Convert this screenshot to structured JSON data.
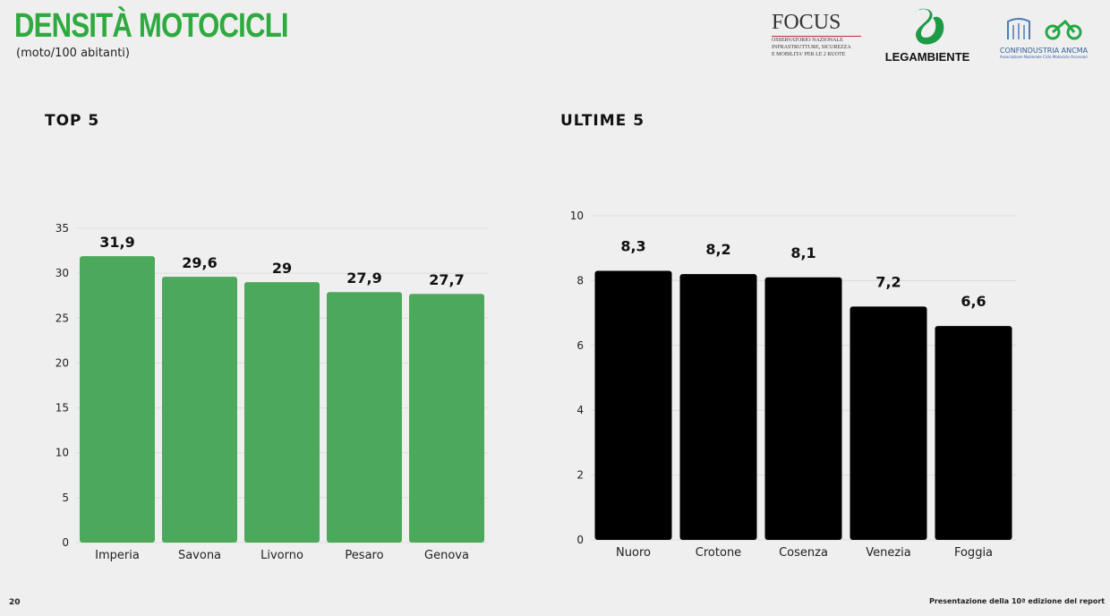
{
  "header": {
    "title": "DENSITÀ MOTOCICLI",
    "subtitle": "(moto/100 abitanti)"
  },
  "logos": {
    "focus": {
      "name": "FOCUS",
      "lines": [
        "OSSERVATORIO NAZIONALE",
        "INFRASTRUTTURE, SICUREZZA",
        "E MOBILITA' PER LE 2 RUOTE"
      ]
    },
    "legambiente": "LEGAMBIENTE",
    "confindustria": {
      "name": "CONFINDUSTRIA ANCMA",
      "sub": "Associazione Nazionale Ciclo Motociclo Accessori"
    }
  },
  "footer": {
    "page": "20",
    "text": "Presentazione della 10ª edizione del report"
  },
  "chart_data": [
    {
      "type": "bar",
      "title": "TOP 5",
      "categories": [
        "Imperia",
        "Savona",
        "Livorno",
        "Pesaro",
        "Genova"
      ],
      "values": [
        31.9,
        29.6,
        29,
        27.9,
        27.7
      ],
      "labels": [
        "31,9",
        "29,6",
        "29",
        "27,9",
        "27,7"
      ],
      "ylim": [
        0,
        35
      ],
      "yticks": [
        0,
        5,
        10,
        15,
        20,
        25,
        30,
        35
      ],
      "grid": true,
      "color": "#4ca85a"
    },
    {
      "type": "bar",
      "title": "ULTIME 5",
      "categories": [
        "Nuoro",
        "Crotone",
        "Cosenza",
        "Venezia",
        "Foggia"
      ],
      "values": [
        8.3,
        8.2,
        8.1,
        7.2,
        6.6
      ],
      "labels": [
        "8,3",
        "8,2",
        "8,1",
        "7,2",
        "6,6"
      ],
      "ylim": [
        0,
        10
      ],
      "yticks": [
        0,
        2,
        4,
        6,
        8,
        10
      ],
      "grid": true,
      "color": "#000000"
    }
  ]
}
